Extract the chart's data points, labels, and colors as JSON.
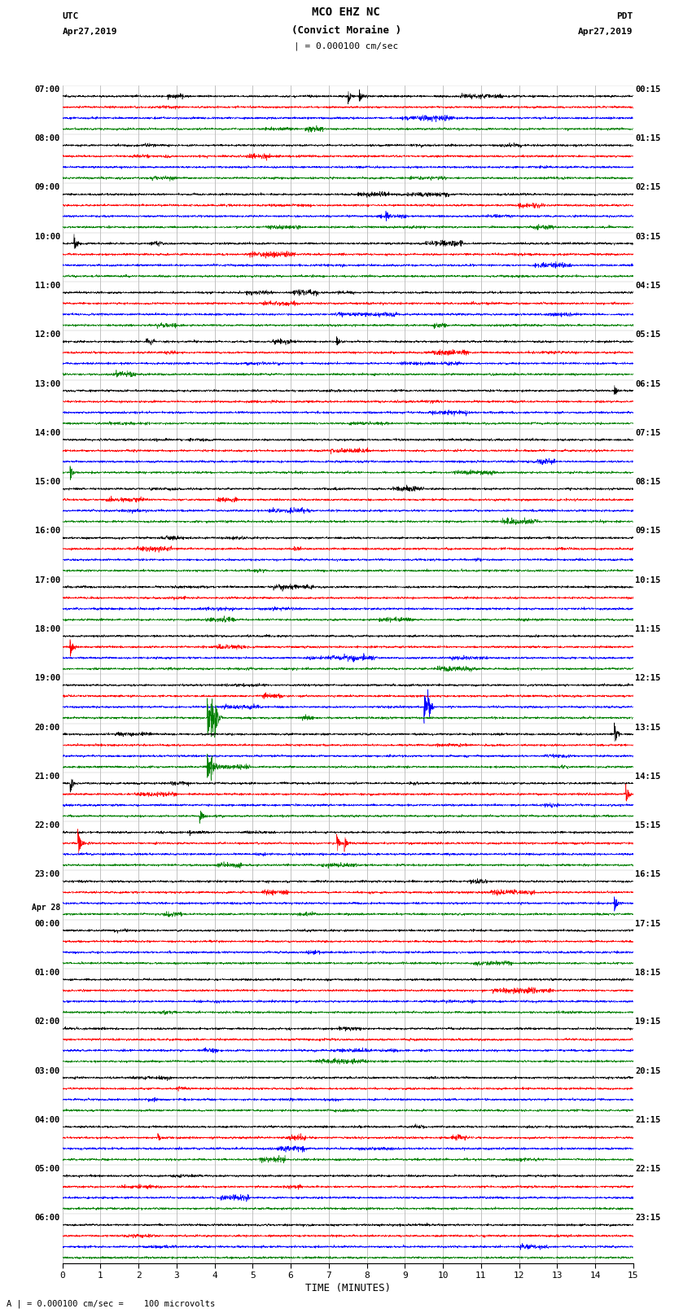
{
  "title_line1": "MCO EHZ NC",
  "title_line2": "(Convict Moraine )",
  "scale_label": "| = 0.000100 cm/sec",
  "label_left": "UTC",
  "label_right": "PDT",
  "date_left": "Apr27,2019",
  "date_right": "Apr27,2019",
  "xlabel": "TIME (MINUTES)",
  "footnote": "A | = 0.000100 cm/sec =    100 microvolts",
  "num_rows": 24,
  "trace_colors": [
    "black",
    "red",
    "blue",
    "green"
  ],
  "bg_color": "white",
  "grid_color": "#999999",
  "xlim": [
    0,
    15
  ],
  "xticks": [
    0,
    1,
    2,
    3,
    4,
    5,
    6,
    7,
    8,
    9,
    10,
    11,
    12,
    13,
    14,
    15
  ],
  "left_label_utc_times": [
    "07:00",
    "08:00",
    "09:00",
    "10:00",
    "11:00",
    "12:00",
    "13:00",
    "14:00",
    "15:00",
    "16:00",
    "17:00",
    "18:00",
    "19:00",
    "20:00",
    "21:00",
    "22:00",
    "23:00",
    "00:00",
    "01:00",
    "02:00",
    "03:00",
    "04:00",
    "05:00",
    "06:00"
  ],
  "apr28_row": 17,
  "right_label_pdt_times": [
    "00:15",
    "01:15",
    "02:15",
    "03:15",
    "04:15",
    "05:15",
    "06:15",
    "07:15",
    "08:15",
    "09:15",
    "10:15",
    "11:15",
    "12:15",
    "13:15",
    "14:15",
    "15:15",
    "16:15",
    "17:15",
    "18:15",
    "19:15",
    "20:15",
    "21:15",
    "22:15",
    "23:15"
  ]
}
